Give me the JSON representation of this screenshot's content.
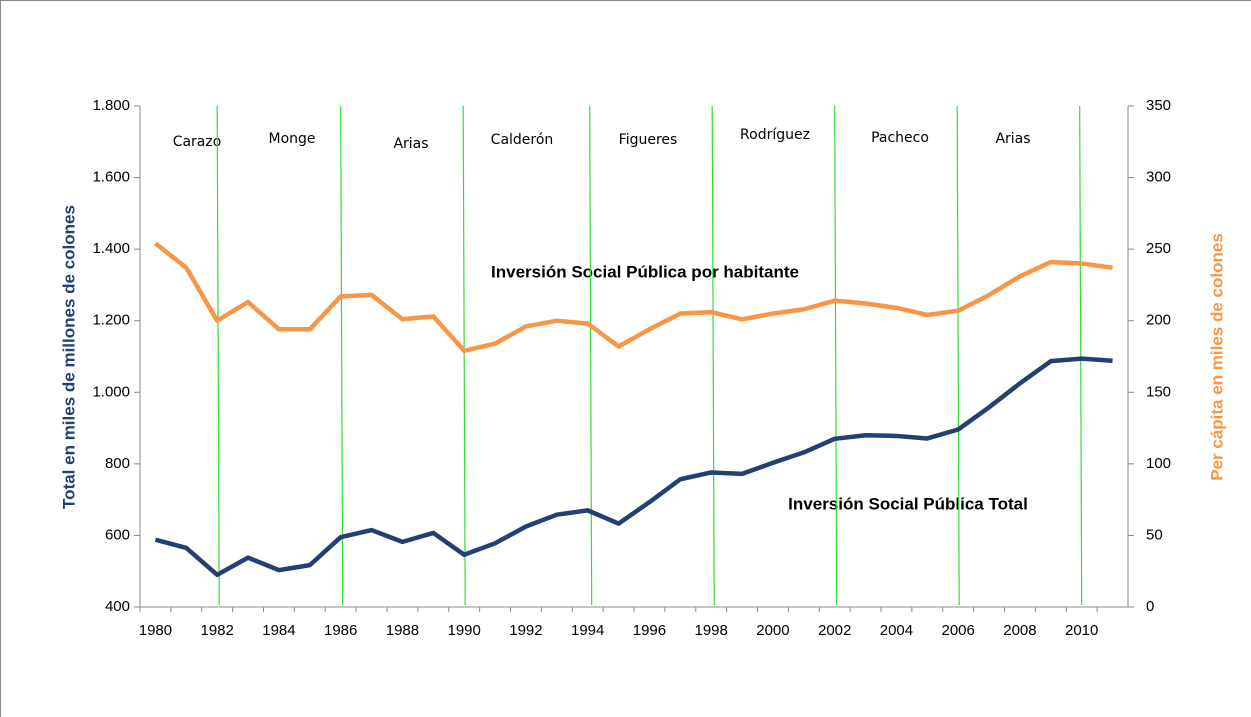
{
  "chart_data": {
    "type": "line",
    "categories": [
      "1980",
      null,
      "1982",
      null,
      "1984",
      null,
      "1986",
      null,
      "1988",
      null,
      "1990",
      null,
      "1992",
      null,
      "1994",
      null,
      "1996",
      null,
      "1998",
      null,
      "2000",
      null,
      "2002",
      null,
      "2004",
      null,
      "2006",
      null,
      "2008",
      null,
      "2010",
      null
    ],
    "series": [
      {
        "name": "Inversión Social Pública Total",
        "color": "#243f72",
        "values": [
          588,
          565,
          490,
          538,
          503,
          517,
          595,
          615,
          582,
          607,
          546,
          578,
          625,
          658,
          670,
          633,
          693,
          757,
          776,
          772,
          803,
          832,
          870,
          880,
          878,
          871,
          896,
          958,
          1025,
          1087,
          1094,
          1088
        ]
      },
      {
        "name": "Inversión Social Pública por habitante",
        "color": "#f79646",
        "axis": "y2",
        "values": [
          254,
          237,
          200,
          213,
          194,
          194,
          217,
          218,
          201,
          203,
          179,
          184,
          196,
          200,
          198,
          182,
          194,
          205,
          206,
          201,
          205,
          208,
          214,
          212,
          209,
          204,
          207,
          218,
          231,
          241,
          240,
          237
        ]
      }
    ],
    "ylabel": "Total en miles de millones de colones",
    "y2label": "Per cápita en miles de colones",
    "ylim": [
      400,
      1800
    ],
    "yticks": [
      400,
      600,
      800,
      {
        "value": 1000,
        "label": "1.000"
      },
      {
        "value": 1200,
        "label": "1.200"
      },
      {
        "value": 1400,
        "label": "1.400"
      },
      {
        "value": 1600,
        "label": "1.600"
      },
      {
        "value": 1800,
        "label": "1.800"
      }
    ],
    "y2lim": [
      0,
      350
    ],
    "y2ticks": [
      0,
      50,
      100,
      150,
      200,
      250,
      300,
      350
    ],
    "annotations": [
      "Carazo",
      "Monge",
      "Arias",
      "Calderón",
      "Figueres",
      "Rodríguez",
      "Pacheco",
      "Arias"
    ],
    "divider_color": "#33dd33"
  }
}
